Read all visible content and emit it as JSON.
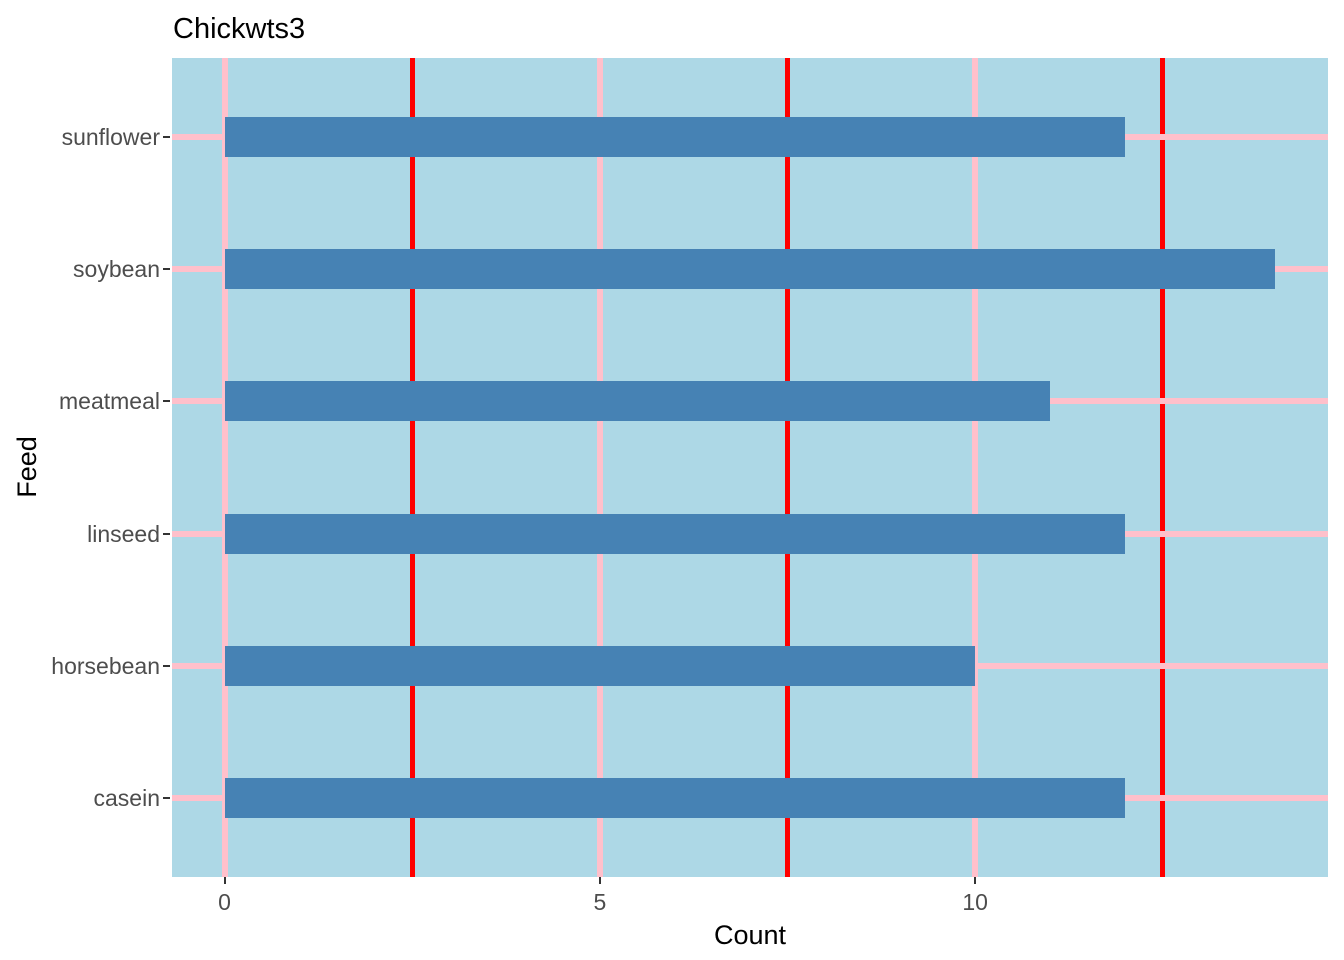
{
  "title": "Chickwts3",
  "axes": {
    "x": {
      "label": "Count"
    },
    "y": {
      "label": "Feed"
    }
  },
  "chart_data": {
    "type": "bar",
    "orientation": "horizontal",
    "title": "Chickwts3",
    "xlabel": "Count",
    "ylabel": "Feed",
    "categories": [
      "sunflower",
      "soybean",
      "meatmeal",
      "linseed",
      "horsebean",
      "casein"
    ],
    "values": [
      12,
      14,
      11,
      12,
      10,
      12
    ],
    "xlim": [
      -0.7,
      14.7
    ],
    "x_major_ticks": [
      0,
      5,
      10
    ],
    "x_minor_gridlines": [
      2.5,
      7.5,
      12.5
    ],
    "grid": {
      "major_color": "#FFC0CB",
      "minor_color": "#FF0000"
    },
    "legend_position": "none",
    "colors": {
      "panel_background": "#ADD8E6",
      "bar_fill": "#4682B4",
      "tick_label": "#4D4D4D",
      "tick_mark": "#333333",
      "text": "#000000",
      "outer_background": "#FFFFFF"
    }
  }
}
